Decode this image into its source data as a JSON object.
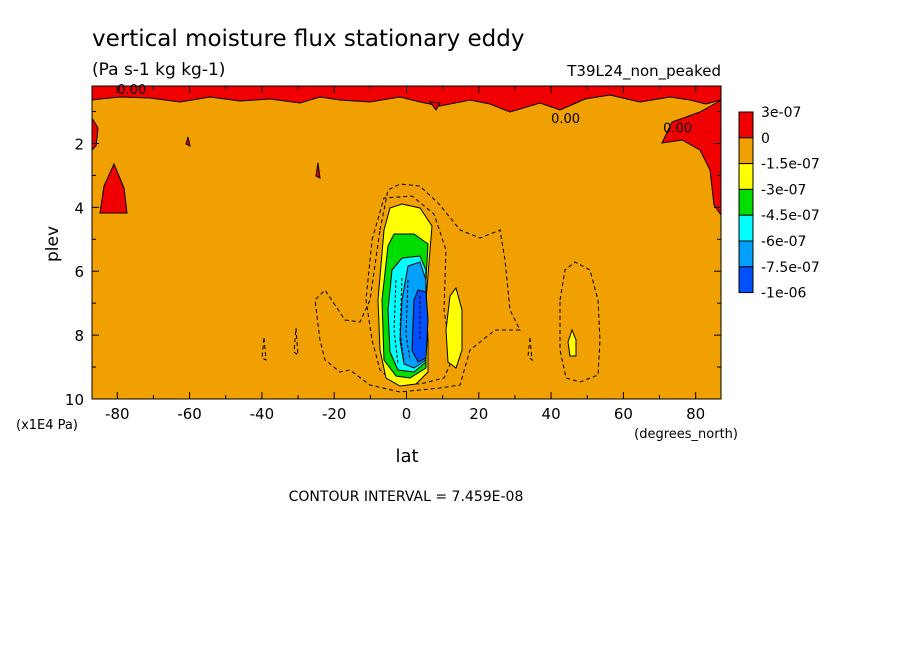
{
  "chart_data": {
    "type": "heatmap",
    "title": "vertical moisture flux stationary eddy",
    "units": "(Pa s-1 kg kg-1)",
    "dataset": "T39L24_non_peaked",
    "xlabel": "lat",
    "ylabel": "plev",
    "x_unit": "(degrees_north)",
    "y_unit": "(x1E4 Pa)",
    "xlim": [
      -87,
      87
    ],
    "ylim": [
      10,
      0.2
    ],
    "x_ticks": [
      -80,
      -60,
      -40,
      -20,
      0,
      20,
      40,
      60,
      80
    ],
    "y_ticks": [
      2,
      4,
      6,
      8,
      10
    ],
    "x_tick_labels": [
      "-80",
      "-60",
      "-40",
      "-20",
      "0",
      "20",
      "40",
      "60",
      "80"
    ],
    "y_tick_labels": [
      "2",
      "4",
      "6",
      "8",
      "10"
    ],
    "contour_interval_text": "CONTOUR INTERVAL = 7.459E-08",
    "contour_labels": [
      {
        "text": "0.00",
        "lat": -76,
        "plev": 0.3
      },
      {
        "text": "0.00",
        "lat": 44,
        "plev": 1.2
      },
      {
        "text": "0.00",
        "lat": 75,
        "plev": 1.5
      }
    ],
    "legend": {
      "placement": "right",
      "levels": [
        "3e-07",
        "0",
        "-1.5e-07",
        "-3e-07",
        "-4.5e-07",
        "-6e-07",
        "-7.5e-07",
        "-1e-06"
      ],
      "colors": [
        "#f00000",
        "#f0a000",
        "#ffff00",
        "#00dd00",
        "#00ffff",
        "#00a0ff",
        "#0050ff"
      ]
    },
    "background_color": "#f0a000",
    "regions": [
      {
        "level_color": "#f00000",
        "lat": [
          -87,
          87
        ],
        "plev": [
          0.2,
          0.7
        ],
        "note": "positive flux band near top"
      },
      {
        "level_color": "#ffff00",
        "lat": [
          -6,
          8
        ],
        "plev": [
          3.8,
          9.4
        ]
      },
      {
        "level_color": "#00dd00",
        "lat": [
          -5,
          7
        ],
        "plev": [
          4.7,
          9.1
        ]
      },
      {
        "level_color": "#00ffff",
        "lat": [
          -4,
          6
        ],
        "plev": [
          5.4,
          8.9
        ]
      },
      {
        "level_color": "#00a0ff",
        "lat": [
          -1,
          6
        ],
        "plev": [
          5.6,
          8.8
        ]
      },
      {
        "level_color": "#0050ff",
        "lat": [
          2,
          5
        ],
        "plev": [
          6.5,
          8.6
        ]
      }
    ]
  }
}
